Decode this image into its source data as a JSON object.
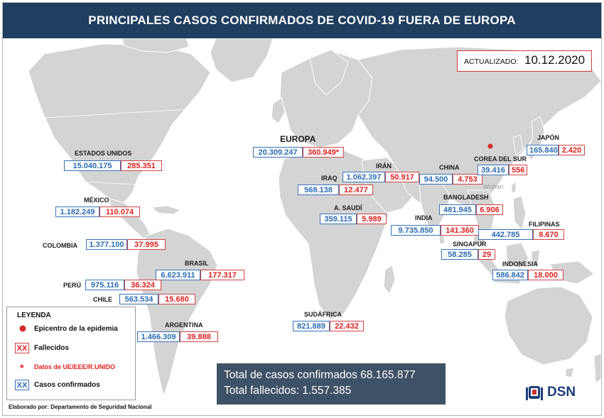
{
  "title": "PRINCIPALES CASOS CONFIRMADOS DE COVID-19 FUERA DE EUROPA",
  "updated": {
    "label": "ACTUALIZADO:",
    "date": "10.12.2020"
  },
  "countries": {
    "usa": {
      "name": "ESTADOS UNIDOS",
      "cases": "15.040.175",
      "deaths": "285.351"
    },
    "mexico": {
      "name": "MÉXICO",
      "cases": "1.182.249",
      "deaths": "110.074"
    },
    "colombia": {
      "name": "COLOMBIA",
      "cases": "1.377.100",
      "deaths": "37.995"
    },
    "brasil": {
      "name": "BRASIL",
      "cases": "6.623.911",
      "deaths": "177.317"
    },
    "peru": {
      "name": "PERÚ",
      "cases": "975.116",
      "deaths": "36.324"
    },
    "chile": {
      "name": "CHILE",
      "cases": "563.534",
      "deaths": "15.680"
    },
    "argentina": {
      "name": "ARGENTINA",
      "cases": "1.466.309",
      "deaths": "39.888"
    },
    "europa": {
      "name": "EUROPA",
      "cases": "20.309.247",
      "deaths": "360.949*"
    },
    "iraq": {
      "name": "IRAQ",
      "cases": "568.138",
      "deaths": "12.477"
    },
    "iran": {
      "name": "IRÁN",
      "cases": "1.062.397",
      "deaths": "50.917"
    },
    "saudi": {
      "name": "A. SAUDÍ",
      "cases": "359.115",
      "deaths": "5.989"
    },
    "sudafrica": {
      "name": "SUDÁFRICA",
      "cases": "821.889",
      "deaths": "22.432"
    },
    "india": {
      "name": "INDIA",
      "cases": "9.735.850",
      "deaths": "141.360"
    },
    "china": {
      "name": "CHINA",
      "cases": "94.500",
      "deaths": "4.753"
    },
    "corea": {
      "name": "COREA DEL SUR",
      "cases": "39.416",
      "deaths": "556"
    },
    "japon": {
      "name": "JAPÓN",
      "cases": "165.840",
      "deaths": "2.420"
    },
    "bangladesh": {
      "name": "BANGLADESH",
      "cases": "481.945",
      "deaths": "6.906"
    },
    "filipinas": {
      "name": "FILIPINAS",
      "cases": "442.785",
      "deaths": "8.670"
    },
    "singapur": {
      "name": "SINGAPUR",
      "cases": "58.285",
      "deaths": "29"
    },
    "indonesia": {
      "name": "INDONESIA",
      "cases": "586.842",
      "deaths": "18.000"
    }
  },
  "wuhan_label": "Wuhan",
  "legend": {
    "title": "LEYENDA",
    "epicenter": "Epicentro de la epidemia",
    "xx_symbol": "XX",
    "deaths": "Fallecidos",
    "asterisk": "*",
    "eu_data": "Datos de UE/EEE/R.UNIDO",
    "cases": "Casos confirmados"
  },
  "totals": {
    "cases": "Total de casos confirmados 68.165.877",
    "deaths": "Total fallecidos: 1.557.385"
  },
  "credit": "Elaborado por: Departamento de Seguridad Nacional",
  "logo_text": "DSN",
  "colors": {
    "title_bg": "#1f3e60",
    "ocean": "#ffffff",
    "land": "#d4d4d4",
    "cases_blue": "#2b6cb5",
    "deaths_red": "#e02020",
    "totals_bg": "#3f5166",
    "epicenter": "#d62b2b"
  }
}
